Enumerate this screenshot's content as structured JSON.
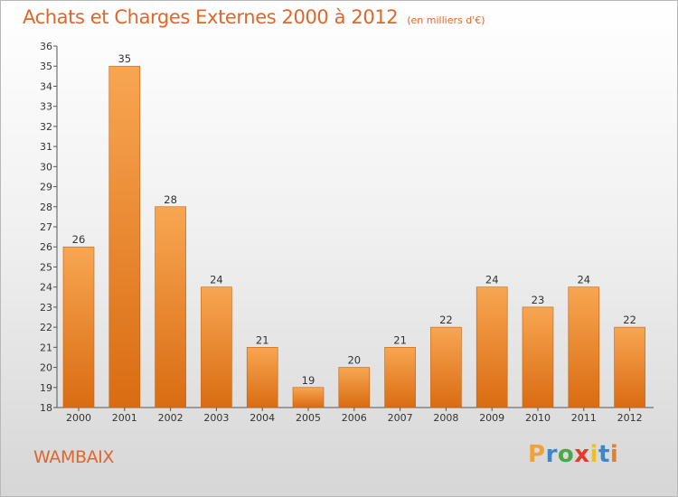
{
  "header": {
    "title": "Achats et Charges Externes 2000 à 2012",
    "unit": "(en milliers d'€)"
  },
  "footer": {
    "commune": "WAMBAIX",
    "logo_letters": [
      "P",
      "r",
      "o",
      "x",
      "i",
      "t",
      "i"
    ],
    "logo_colors": [
      "#f0a23a",
      "#3f86c8",
      "#4aa84a",
      "#e03c2c",
      "#f0c020",
      "#3f86c8",
      "#e08030"
    ]
  },
  "colors": {
    "bar_top": "#f8a652",
    "bar_bottom": "#d96c12",
    "bar_edge": "#c2600e",
    "title": "#e0662a"
  },
  "chart_data": {
    "type": "bar",
    "categories": [
      "2000",
      "2001",
      "2002",
      "2003",
      "2004",
      "2005",
      "2006",
      "2007",
      "2008",
      "2009",
      "2010",
      "2011",
      "2012"
    ],
    "values": [
      26,
      35,
      28,
      24,
      21,
      19,
      20,
      21,
      22,
      24,
      23,
      24,
      22
    ],
    "data_labels": [
      "26",
      "35",
      "28",
      "24",
      "21",
      "19",
      "20",
      "21",
      "22",
      "24",
      "23",
      "24",
      "22"
    ],
    "yticks": [
      "18",
      "19",
      "20",
      "21",
      "22",
      "23",
      "24",
      "25",
      "26",
      "27",
      "28",
      "29",
      "30",
      "31",
      "32",
      "33",
      "34",
      "35",
      "36"
    ],
    "ylim": [
      18,
      36
    ],
    "grid": false,
    "legend": "none"
  }
}
